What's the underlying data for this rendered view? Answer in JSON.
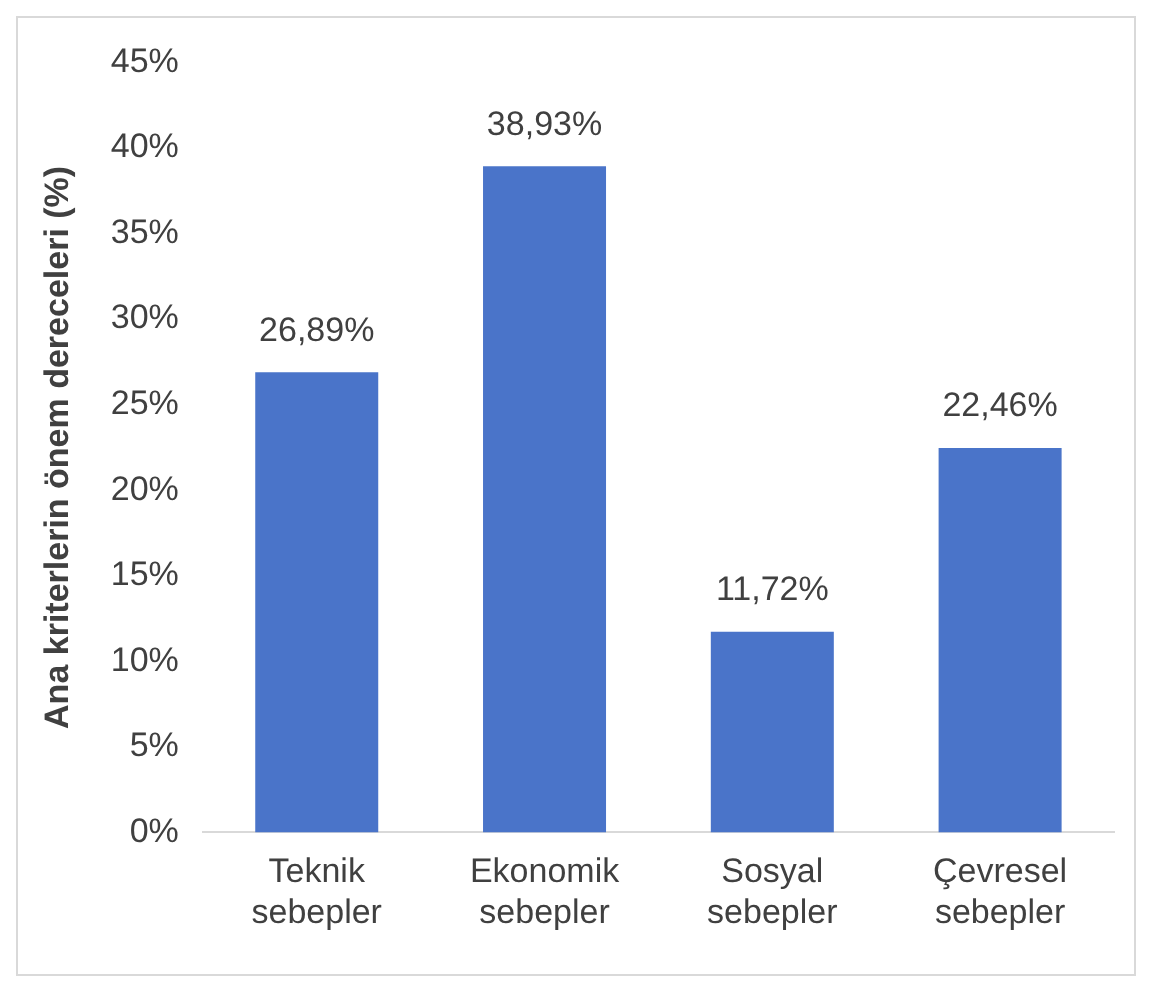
{
  "chart_data": {
    "type": "bar",
    "ylabel": "Ana kriterlerin önem dereceleri (%)",
    "categories": [
      "Teknik sebepler",
      "Ekonomik sebepler",
      "Sosyal sebepler",
      "Çevresel sebepler"
    ],
    "values": [
      26.89,
      38.93,
      11.72,
      22.46
    ],
    "value_labels": [
      "26,89%",
      "38,93%",
      "11,72%",
      "22,46%"
    ],
    "color": "#4a74c9",
    "ylim": [
      0,
      45
    ],
    "yticks": [
      {
        "value": 0,
        "label": "0%"
      },
      {
        "value": 5,
        "label": "5%"
      },
      {
        "value": 10,
        "label": "10%"
      },
      {
        "value": 15,
        "label": "15%"
      },
      {
        "value": 20,
        "label": "20%"
      },
      {
        "value": 25,
        "label": "25%"
      },
      {
        "value": 30,
        "label": "30%"
      },
      {
        "value": 35,
        "label": "35%"
      },
      {
        "value": 40,
        "label": "40%"
      },
      {
        "value": 45,
        "label": "45%"
      }
    ],
    "grid": false,
    "legend": false
  }
}
